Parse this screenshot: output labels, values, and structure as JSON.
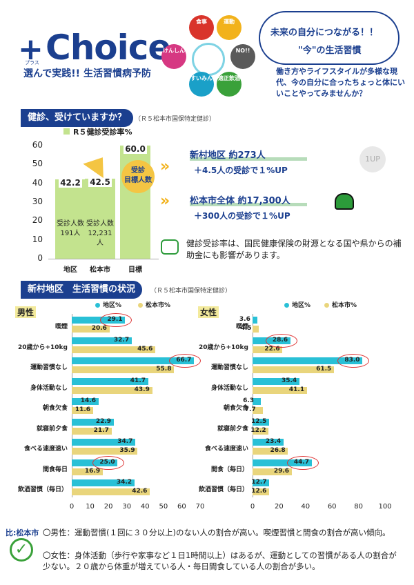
{
  "header": {
    "logo_plus": "+",
    "logo_puras": "プラス",
    "logo_word": "Choice",
    "logo_sub": "選んで実践!! 生活習慣病予防",
    "icons": [
      {
        "label": "食事",
        "icon": "meal-icon",
        "color": "#d9342b"
      },
      {
        "label": "運動",
        "icon": "exercise-icon",
        "color": "#f2b21b"
      },
      {
        "label": "NO!!",
        "icon": "no-smoking-icon",
        "color": "#5a5a5a"
      },
      {
        "label": "適正飲酒",
        "icon": "drink-icon",
        "color": "#3aa13a"
      },
      {
        "label": "すいみん",
        "icon": "sleep-icon",
        "color": "#1aa0c8"
      },
      {
        "label": "けんしん",
        "icon": "checkup-icon",
        "color": "#d63882"
      }
    ],
    "bubble_line1": "未来の自分につながる！！",
    "bubble_line2": "\"今\"の生活習慣",
    "body": "働き方やライフスタイルが多様な現代、今の自分に合ったちょっと体にいいことやってみませんか？"
  },
  "section1": {
    "title": "健診、受けていますか？",
    "note": "（Ｒ５松本市国保特定健診）",
    "legend": "R５健診受診率%",
    "target_badge": "受診\n目標人数",
    "one_up": "1UP",
    "info": [
      {
        "main": "新村地区  約273人",
        "sub": "＋4.5人の受診で１%UP"
      },
      {
        "main": "松本市全体  約17,300人",
        "sub": "＋300人の受診で１%UP"
      }
    ],
    "note_text": "健診受診率は、国民健康保険の財源となる国や県からの補助金にも影響があります。"
  },
  "chart_data": [
    {
      "type": "bar",
      "title": "健診、受けていますか？",
      "categories": [
        "地区",
        "松本市",
        "目標"
      ],
      "series": [
        {
          "name": "R５健診受診率%",
          "values": [
            42.2,
            42.5,
            60.0
          ]
        }
      ],
      "value_labels": [
        "42.2",
        "42.5",
        "60.0"
      ],
      "bar_captions": [
        "受診人数\n191人",
        "受診人数\n12,231人",
        ""
      ],
      "ylim": [
        0,
        60
      ],
      "yticks": [
        0,
        10,
        20,
        30,
        40,
        50,
        60
      ],
      "color": "#c3e38e"
    },
    {
      "type": "bar",
      "orientation": "horizontal",
      "title": "男性",
      "categories": [
        "喫煙",
        "20歳から+10kg",
        "運動習慣なし",
        "身体活動なし",
        "朝食欠食",
        "就寝前夕食",
        "食べる速度速い",
        "間食毎日",
        "飲酒習慣（毎日）"
      ],
      "series": [
        {
          "name": "地区%",
          "values": [
            29.1,
            32.7,
            66.7,
            41.7,
            14.6,
            22.9,
            34.7,
            25.0,
            34.2
          ],
          "color": "#29c0d6"
        },
        {
          "name": "松本市%",
          "values": [
            20.6,
            45.6,
            55.8,
            43.9,
            11.6,
            21.7,
            35.9,
            16.9,
            42.6
          ],
          "color": "#e9d57c"
        }
      ],
      "value_labels": {
        "地区%": [
          "29.1",
          "32.7",
          "66.7",
          "41.7",
          "14.6",
          "22.9",
          "34.7",
          "25.0",
          "34.2"
        ],
        "松本市%": [
          "20.6",
          "45.6",
          "55.8",
          "43.9",
          "11.6",
          "21.7",
          "35.9",
          "16.9",
          "42.6"
        ]
      },
      "circled": [
        0,
        2,
        7
      ],
      "xlim": [
        0,
        70
      ],
      "xticks": [
        0,
        10,
        20,
        30,
        40,
        50,
        60,
        70
      ]
    },
    {
      "type": "bar",
      "orientation": "horizontal",
      "title": "女性",
      "categories": [
        "喫煙",
        "20歳から+10kg",
        "運動習慣なし",
        "身体活動なし",
        "朝食欠食",
        "就寝前夕食",
        "食べる速度速い",
        "間食（毎日）",
        "飲酒習慣（毎日）"
      ],
      "series": [
        {
          "name": "地区%",
          "values": [
            3.6,
            28.6,
            83.0,
            35.4,
            6.3,
            12.5,
            23.4,
            44.7,
            12.7
          ],
          "color": "#29c0d6"
        },
        {
          "name": "松本市%",
          "values": [
            4.5,
            22.6,
            61.5,
            41.1,
            7.7,
            12.2,
            26.8,
            29.6,
            12.6
          ],
          "color": "#e9d57c"
        }
      ],
      "value_labels": {
        "地区%": [
          "3.6",
          "28.6",
          "83.0",
          "35.4",
          "6.3",
          "12.5",
          "23.4",
          "44.7",
          "12.7"
        ],
        "松本市%": [
          "4.5",
          "22.6",
          "61.5",
          "41.1",
          "7.7",
          "12.2",
          "26.8",
          "29.6",
          "12.6"
        ]
      },
      "circled": [
        1,
        2,
        7
      ],
      "xlim": [
        0,
        100
      ],
      "xticks": [
        0,
        20,
        40,
        60,
        80,
        100
      ]
    }
  ],
  "section2": {
    "title": "新村地区　生活習慣の状況",
    "note": "（Ｒ５松本市国保特定健診）",
    "legend_area": "地区%",
    "legend_city": "松本市%"
  },
  "footer": {
    "title": "比:松本市",
    "line1": "〇男性：運動習慣(１回に３０分以上)のない人の割合が高い。喫煙習慣と間食の割合が高い傾向。",
    "line2": "〇女性：身体活動（歩行や家事など１日1時間以上）はあるが、運動としての習慣がある人の割合が少ない。２０歳から体重が増えている人・毎日間食している人の割合が多い。"
  }
}
